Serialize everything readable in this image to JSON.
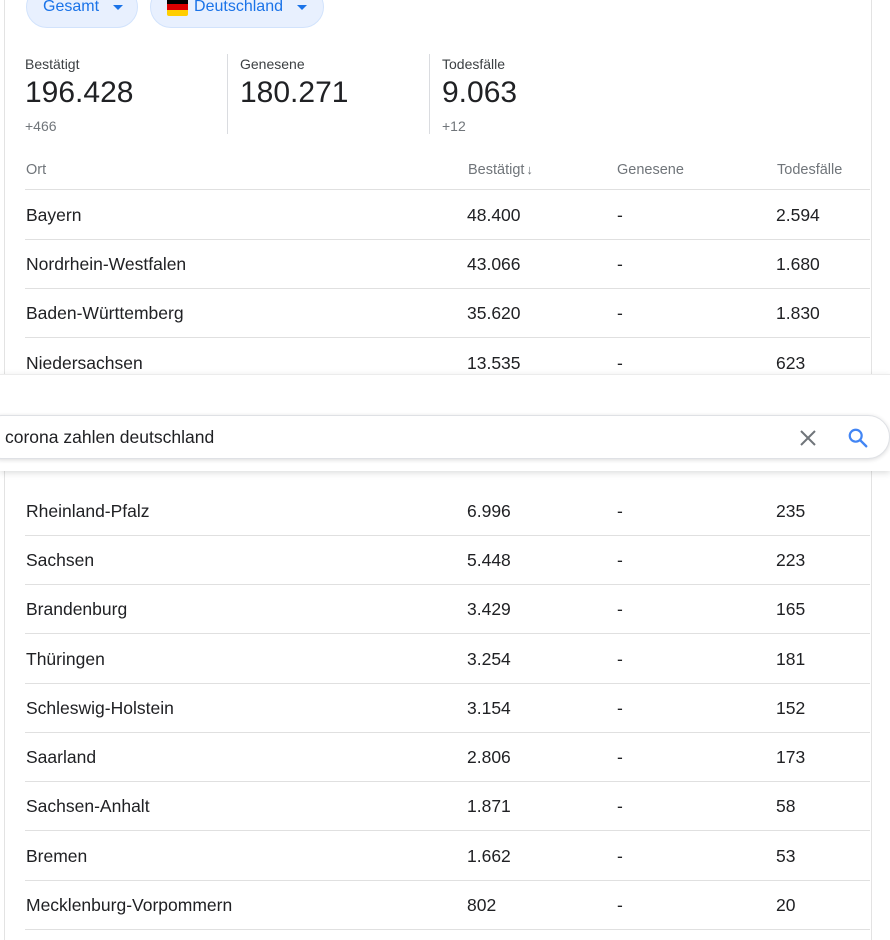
{
  "filters": {
    "scope_label": "Gesamt",
    "country_label": "Deutschland"
  },
  "stats": [
    {
      "title": "Bestätigt",
      "value": "196.428",
      "delta": "+466"
    },
    {
      "title": "Genesene",
      "value": "180.271",
      "delta": ""
    },
    {
      "title": "Todesfälle",
      "value": "9.063",
      "delta": "+12"
    }
  ],
  "table": {
    "headers": {
      "place": "Ort",
      "confirmed": "Bestätigt",
      "recovered": "Genesene",
      "deaths": "Todesfälle"
    },
    "rows": [
      {
        "place": "Bayern",
        "confirmed": "48.400",
        "recovered": "-",
        "deaths": "2.594"
      },
      {
        "place": "Nordrhein-Westfalen",
        "confirmed": "43.066",
        "recovered": "-",
        "deaths": "1.680"
      },
      {
        "place": "Baden-Württemberg",
        "confirmed": "35.620",
        "recovered": "-",
        "deaths": "1.830"
      },
      {
        "place": "Niedersachsen",
        "confirmed": "13.535",
        "recovered": "-",
        "deaths": "623"
      },
      {
        "place": "Rheinland-Pfalz",
        "confirmed": "6.996",
        "recovered": "-",
        "deaths": "235"
      },
      {
        "place": "Sachsen",
        "confirmed": "5.448",
        "recovered": "-",
        "deaths": "223"
      },
      {
        "place": "Brandenburg",
        "confirmed": "3.429",
        "recovered": "-",
        "deaths": "165"
      },
      {
        "place": "Thüringen",
        "confirmed": "3.254",
        "recovered": "-",
        "deaths": "181"
      },
      {
        "place": "Schleswig-Holstein",
        "confirmed": "3.154",
        "recovered": "-",
        "deaths": "152"
      },
      {
        "place": "Saarland",
        "confirmed": "2.806",
        "recovered": "-",
        "deaths": "173"
      },
      {
        "place": "Sachsen-Anhalt",
        "confirmed": "1.871",
        "recovered": "-",
        "deaths": "58"
      },
      {
        "place": "Bremen",
        "confirmed": "1.662",
        "recovered": "-",
        "deaths": "53"
      },
      {
        "place": "Mecklenburg-Vorpommern",
        "confirmed": "802",
        "recovered": "-",
        "deaths": "20"
      }
    ]
  },
  "search": {
    "query": "corona zahlen deutschland"
  },
  "icons": {
    "sort": "arrow-down-icon",
    "clear": "close-icon",
    "search": "search-icon"
  },
  "colors": {
    "accent": "#1a73e8",
    "chip_bg": "#e8f0fe",
    "divider": "#e0e0e0"
  }
}
